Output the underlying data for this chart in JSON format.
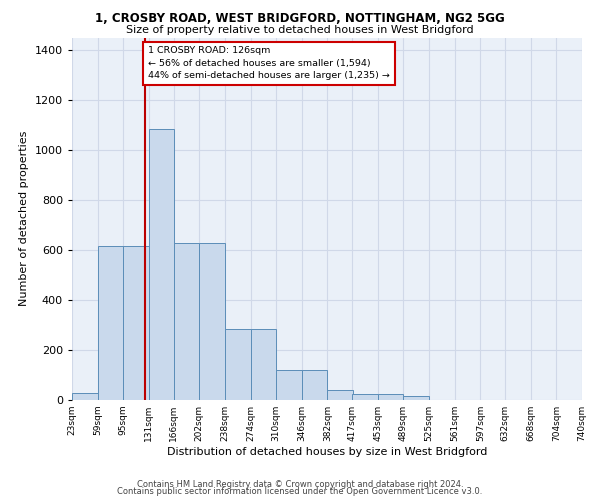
{
  "title1": "1, CROSBY ROAD, WEST BRIDGFORD, NOTTINGHAM, NG2 5GG",
  "title2": "Size of property relative to detached houses in West Bridgford",
  "xlabel": "Distribution of detached houses by size in West Bridgford",
  "ylabel": "Number of detached properties",
  "footnote1": "Contains HM Land Registry data © Crown copyright and database right 2024.",
  "footnote2": "Contains public sector information licensed under the Open Government Licence v3.0.",
  "annotation_line1": "1 CROSBY ROAD: 126sqm",
  "annotation_line2": "← 56% of detached houses are smaller (1,594)",
  "annotation_line3": "44% of semi-detached houses are larger (1,235) →",
  "property_size": 126,
  "bar_left_edges": [
    23,
    59,
    95,
    131,
    166,
    202,
    238,
    274,
    310,
    346,
    382,
    417,
    453,
    489,
    525,
    561,
    597,
    632,
    668,
    704
  ],
  "bar_heights": [
    30,
    615,
    615,
    1085,
    630,
    630,
    285,
    285,
    120,
    120,
    40,
    25,
    25,
    15,
    2,
    2,
    2,
    2,
    2,
    2
  ],
  "bar_color": "#c9d9ec",
  "bar_edge_color": "#5b8db8",
  "grid_color": "#d0d8e8",
  "marker_color": "#bb0000",
  "background_color": "#eaf0f8",
  "ylim": [
    0,
    1450
  ],
  "yticks": [
    0,
    200,
    400,
    600,
    800,
    1000,
    1200,
    1400
  ],
  "bin_width": 36,
  "x_tick_positions": [
    23,
    59,
    95,
    131,
    166,
    202,
    238,
    274,
    310,
    346,
    382,
    417,
    453,
    489,
    525,
    561,
    597,
    632,
    668,
    704,
    740
  ],
  "x_labels": [
    "23sqm",
    "59sqm",
    "95sqm",
    "131sqm",
    "166sqm",
    "202sqm",
    "238sqm",
    "274sqm",
    "310sqm",
    "346sqm",
    "382sqm",
    "417sqm",
    "453sqm",
    "489sqm",
    "525sqm",
    "561sqm",
    "597sqm",
    "632sqm",
    "668sqm",
    "704sqm",
    "740sqm"
  ]
}
